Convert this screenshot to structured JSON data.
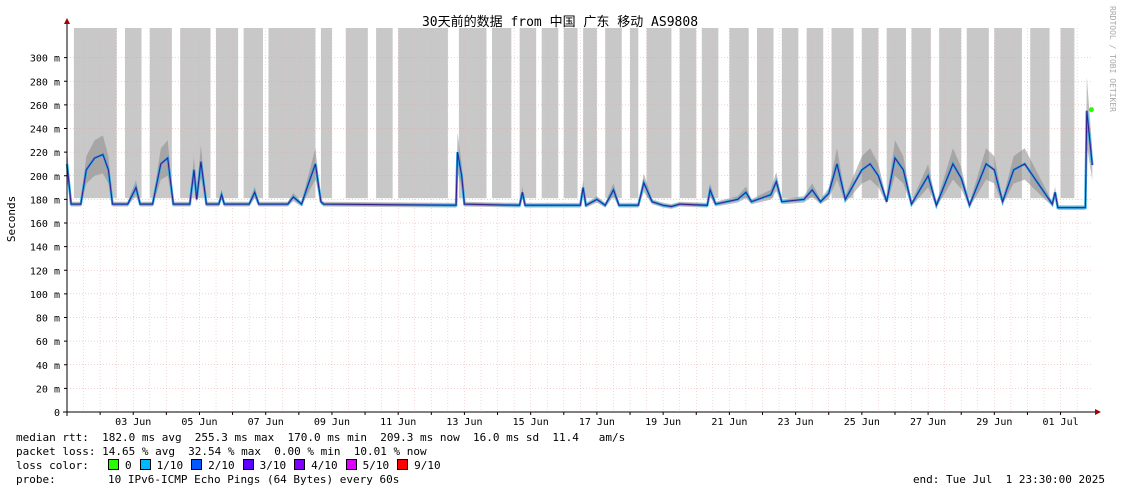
{
  "chart_data": {
    "type": "line",
    "title": "30天前的数据 from 中国 广东 移动 AS9808",
    "ylabel": "Seconds",
    "watermark": "RRDTOOL / TOBI OETIKER",
    "ylim": [
      0,
      320
    ],
    "y_ticks": [
      {
        "v": 0,
        "label": "0"
      },
      {
        "v": 20,
        "label": "20 m"
      },
      {
        "v": 40,
        "label": "40 m"
      },
      {
        "v": 60,
        "label": "60 m"
      },
      {
        "v": 80,
        "label": "80 m"
      },
      {
        "v": 100,
        "label": "100 m"
      },
      {
        "v": 120,
        "label": "120 m"
      },
      {
        "v": 140,
        "label": "140 m"
      },
      {
        "v": 160,
        "label": "160 m"
      },
      {
        "v": 180,
        "label": "180 m"
      },
      {
        "v": 200,
        "label": "200 m"
      },
      {
        "v": 220,
        "label": "220 m"
      },
      {
        "v": 240,
        "label": "240 m"
      },
      {
        "v": 260,
        "label": "260 m"
      },
      {
        "v": 280,
        "label": "280 m"
      },
      {
        "v": 300,
        "label": "300 m"
      }
    ],
    "x_start": "2025-06-01",
    "x_end": "2025-07-01",
    "x_ticks": [
      {
        "date": "2025-06-03",
        "label": "03 Jun"
      },
      {
        "date": "2025-06-05",
        "label": "05 Jun"
      },
      {
        "date": "2025-06-07",
        "label": "07 Jun"
      },
      {
        "date": "2025-06-09",
        "label": "09 Jun"
      },
      {
        "date": "2025-06-11",
        "label": "11 Jun"
      },
      {
        "date": "2025-06-13",
        "label": "13 Jun"
      },
      {
        "date": "2025-06-15",
        "label": "15 Jun"
      },
      {
        "date": "2025-06-17",
        "label": "17 Jun"
      },
      {
        "date": "2025-06-19",
        "label": "19 Jun"
      },
      {
        "date": "2025-06-21",
        "label": "21 Jun"
      },
      {
        "date": "2025-06-23",
        "label": "23 Jun"
      },
      {
        "date": "2025-06-25",
        "label": "25 Jun"
      },
      {
        "date": "2025-06-27",
        "label": "27 Jun"
      },
      {
        "date": "2025-06-29",
        "label": "29 Jun"
      },
      {
        "date": "2025-07-01",
        "label": "01 Jul"
      }
    ],
    "median_rtt": [
      {
        "x": "2025-06-01 00:00",
        "y": 210
      },
      {
        "x": "2025-06-01 03:00",
        "y": 176
      },
      {
        "x": "2025-06-01 10:00",
        "y": 176
      },
      {
        "x": "2025-06-01 14:00",
        "y": 205
      },
      {
        "x": "2025-06-01 20:00",
        "y": 215
      },
      {
        "x": "2025-06-02 02:00",
        "y": 218
      },
      {
        "x": "2025-06-02 06:00",
        "y": 205
      },
      {
        "x": "2025-06-02 09:00",
        "y": 176
      },
      {
        "x": "2025-06-02 20:00",
        "y": 176
      },
      {
        "x": "2025-06-03 02:00",
        "y": 190
      },
      {
        "x": "2025-06-03 05:00",
        "y": 176
      },
      {
        "x": "2025-06-03 14:00",
        "y": 176
      },
      {
        "x": "2025-06-03 20:00",
        "y": 210
      },
      {
        "x": "2025-06-04 01:00",
        "y": 215
      },
      {
        "x": "2025-06-04 05:00",
        "y": 176
      },
      {
        "x": "2025-06-04 17:00",
        "y": 176
      },
      {
        "x": "2025-06-04 20:00",
        "y": 205
      },
      {
        "x": "2025-06-04 22:00",
        "y": 180
      },
      {
        "x": "2025-06-05 01:00",
        "y": 212
      },
      {
        "x": "2025-06-05 05:00",
        "y": 176
      },
      {
        "x": "2025-06-05 14:00",
        "y": 176
      },
      {
        "x": "2025-06-05 16:00",
        "y": 184
      },
      {
        "x": "2025-06-05 18:00",
        "y": 176
      },
      {
        "x": "2025-06-06 12:00",
        "y": 176
      },
      {
        "x": "2025-06-06 16:00",
        "y": 186
      },
      {
        "x": "2025-06-06 19:00",
        "y": 176
      },
      {
        "x": "2025-06-07 16:00",
        "y": 176
      },
      {
        "x": "2025-06-07 20:00",
        "y": 182
      },
      {
        "x": "2025-06-08 02:00",
        "y": 176
      },
      {
        "x": "2025-06-08 06:00",
        "y": 190
      },
      {
        "x": "2025-06-08 12:00",
        "y": 210
      },
      {
        "x": "2025-06-08 16:00",
        "y": 178
      },
      {
        "x": "2025-06-08 18:00",
        "y": 176
      },
      {
        "x": "2025-06-12 18:00",
        "y": 175
      },
      {
        "x": "2025-06-12 19:00",
        "y": 220
      },
      {
        "x": "2025-06-12 22:00",
        "y": 200
      },
      {
        "x": "2025-06-13 00:00",
        "y": 176
      },
      {
        "x": "2025-06-14 16:00",
        "y": 175
      },
      {
        "x": "2025-06-14 18:00",
        "y": 186
      },
      {
        "x": "2025-06-14 20:00",
        "y": 175
      },
      {
        "x": "2025-06-16 12:00",
        "y": 175
      },
      {
        "x": "2025-06-16 14:00",
        "y": 190
      },
      {
        "x": "2025-06-16 16:00",
        "y": 175
      },
      {
        "x": "2025-06-17 00:00",
        "y": 180
      },
      {
        "x": "2025-06-17 06:00",
        "y": 175
      },
      {
        "x": "2025-06-17 12:00",
        "y": 188
      },
      {
        "x": "2025-06-17 16:00",
        "y": 175
      },
      {
        "x": "2025-06-18 06:00",
        "y": 175
      },
      {
        "x": "2025-06-18 10:00",
        "y": 194
      },
      {
        "x": "2025-06-18 16:00",
        "y": 178
      },
      {
        "x": "2025-06-19 00:00",
        "y": 175
      },
      {
        "x": "2025-06-19 06:00",
        "y": 174
      },
      {
        "x": "2025-06-19 12:00",
        "y": 176
      },
      {
        "x": "2025-06-20 08:00",
        "y": 175
      },
      {
        "x": "2025-06-20 10:00",
        "y": 188
      },
      {
        "x": "2025-06-20 14:00",
        "y": 176
      },
      {
        "x": "2025-06-21 06:00",
        "y": 180
      },
      {
        "x": "2025-06-21 12:00",
        "y": 186
      },
      {
        "x": "2025-06-21 16:00",
        "y": 178
      },
      {
        "x": "2025-06-22 06:00",
        "y": 184
      },
      {
        "x": "2025-06-22 10:00",
        "y": 195
      },
      {
        "x": "2025-06-22 14:00",
        "y": 178
      },
      {
        "x": "2025-06-23 06:00",
        "y": 180
      },
      {
        "x": "2025-06-23 12:00",
        "y": 188
      },
      {
        "x": "2025-06-23 18:00",
        "y": 178
      },
      {
        "x": "2025-06-24 00:00",
        "y": 185
      },
      {
        "x": "2025-06-24 06:00",
        "y": 210
      },
      {
        "x": "2025-06-24 12:00",
        "y": 180
      },
      {
        "x": "2025-06-25 00:00",
        "y": 205
      },
      {
        "x": "2025-06-25 06:00",
        "y": 210
      },
      {
        "x": "2025-06-25 12:00",
        "y": 200
      },
      {
        "x": "2025-06-25 18:00",
        "y": 178
      },
      {
        "x": "2025-06-26 00:00",
        "y": 215
      },
      {
        "x": "2025-06-26 06:00",
        "y": 205
      },
      {
        "x": "2025-06-26 12:00",
        "y": 176
      },
      {
        "x": "2025-06-27 00:00",
        "y": 200
      },
      {
        "x": "2025-06-27 06:00",
        "y": 175
      },
      {
        "x": "2025-06-27 18:00",
        "y": 210
      },
      {
        "x": "2025-06-28 00:00",
        "y": 198
      },
      {
        "x": "2025-06-28 06:00",
        "y": 175
      },
      {
        "x": "2025-06-28 18:00",
        "y": 210
      },
      {
        "x": "2025-06-29 00:00",
        "y": 205
      },
      {
        "x": "2025-06-29 06:00",
        "y": 178
      },
      {
        "x": "2025-06-29 14:00",
        "y": 205
      },
      {
        "x": "2025-06-29 22:00",
        "y": 210
      },
      {
        "x": "2025-06-30 18:00",
        "y": 176
      },
      {
        "x": "2025-06-30 20:00",
        "y": 186
      },
      {
        "x": "2025-06-30 22:00",
        "y": 173
      },
      {
        "x": "2025-07-01 18:00",
        "y": 173
      },
      {
        "x": "2025-07-01 19:00",
        "y": 255
      },
      {
        "x": "2025-07-01 23:00",
        "y": 209
      }
    ],
    "loss_spans": [
      [
        "2025-06-01 05:00",
        "2025-06-02 12:00"
      ],
      [
        "2025-06-02 18:00",
        "2025-06-03 06:00"
      ],
      [
        "2025-06-03 12:00",
        "2025-06-04 04:00"
      ],
      [
        "2025-06-04 10:00",
        "2025-06-05 08:00"
      ],
      [
        "2025-06-05 12:00",
        "2025-06-06 04:00"
      ],
      [
        "2025-06-06 08:00",
        "2025-06-06 22:00"
      ],
      [
        "2025-06-07 02:00",
        "2025-06-08 12:00"
      ],
      [
        "2025-06-08 16:00",
        "2025-06-09 00:00"
      ],
      [
        "2025-06-09 10:00",
        "2025-06-10 02:00"
      ],
      [
        "2025-06-10 08:00",
        "2025-06-10 20:00"
      ],
      [
        "2025-06-11 00:00",
        "2025-06-12 12:00"
      ],
      [
        "2025-06-12 20:00",
        "2025-06-13 16:00"
      ],
      [
        "2025-06-13 20:00",
        "2025-06-14 10:00"
      ],
      [
        "2025-06-14 16:00",
        "2025-06-15 04:00"
      ],
      [
        "2025-06-15 08:00",
        "2025-06-15 20:00"
      ],
      [
        "2025-06-16 00:00",
        "2025-06-16 10:00"
      ],
      [
        "2025-06-16 14:00",
        "2025-06-17 00:00"
      ],
      [
        "2025-06-17 06:00",
        "2025-06-17 18:00"
      ],
      [
        "2025-06-18 00:00",
        "2025-06-18 06:00"
      ],
      [
        "2025-06-18 12:00",
        "2025-06-19 06:00"
      ],
      [
        "2025-06-19 12:00",
        "2025-06-20 00:00"
      ],
      [
        "2025-06-20 04:00",
        "2025-06-20 16:00"
      ],
      [
        "2025-06-21 00:00",
        "2025-06-21 14:00"
      ],
      [
        "2025-06-21 20:00",
        "2025-06-22 08:00"
      ],
      [
        "2025-06-22 14:00",
        "2025-06-23 02:00"
      ],
      [
        "2025-06-23 08:00",
        "2025-06-23 20:00"
      ],
      [
        "2025-06-24 02:00",
        "2025-06-24 18:00"
      ],
      [
        "2025-06-25 00:00",
        "2025-06-25 12:00"
      ],
      [
        "2025-06-25 18:00",
        "2025-06-26 08:00"
      ],
      [
        "2025-06-26 12:00",
        "2025-06-27 02:00"
      ],
      [
        "2025-06-27 08:00",
        "2025-06-28 00:00"
      ],
      [
        "2025-06-28 04:00",
        "2025-06-28 20:00"
      ],
      [
        "2025-06-29 00:00",
        "2025-06-29 20:00"
      ],
      [
        "2025-06-30 02:00",
        "2025-06-30 16:00"
      ],
      [
        "2025-07-01 00:00",
        "2025-07-01 10:00"
      ]
    ]
  },
  "stats": {
    "median": "median rtt:  182.0 ms avg  255.3 ms max  170.0 ms min  209.3 ms now  16.0 ms sd  11.4   am/s",
    "loss": "packet loss: 14.65 % avg  32.54 % max  0.00 % min  10.01 % now"
  },
  "loss_color": {
    "label": "loss color:",
    "items": [
      {
        "label": "0",
        "color": "#26ff00"
      },
      {
        "label": "1/10",
        "color": "#00b8ff"
      },
      {
        "label": "2/10",
        "color": "#0059ff"
      },
      {
        "label": "3/10",
        "color": "#5e00ff"
      },
      {
        "label": "4/10",
        "color": "#7e00ff"
      },
      {
        "label": "5/10",
        "color": "#dd00ff"
      },
      {
        "label": "9/10",
        "color": "#ff0000"
      }
    ]
  },
  "probe": {
    "label": "probe:",
    "text": "10 IPv6-ICMP Echo Pings (64 Bytes) every 60s"
  },
  "end_text": "end: Tue Jul  1 23:30:00 2025"
}
